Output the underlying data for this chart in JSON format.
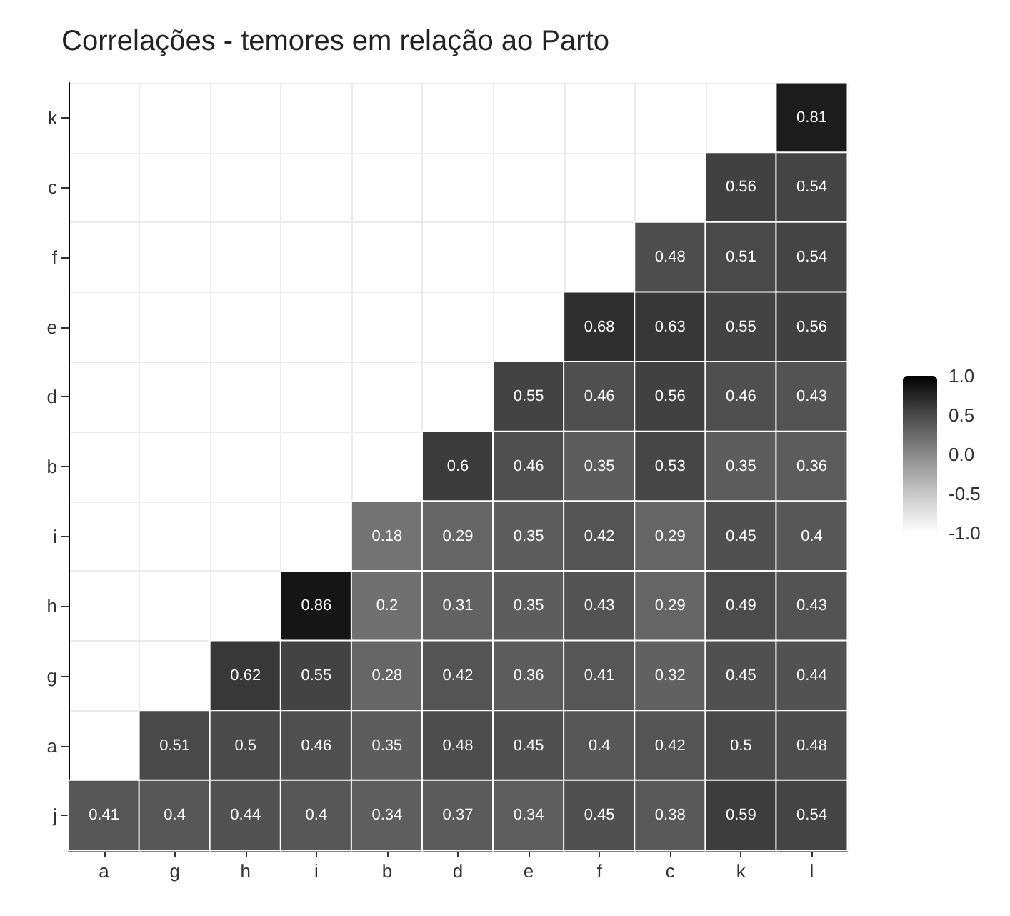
{
  "chart_data": {
    "type": "heatmap",
    "title": "Correlações - temores em relação ao Parto",
    "categories": [
      "a",
      "g",
      "h",
      "i",
      "b",
      "d",
      "e",
      "f",
      "c",
      "k",
      "l"
    ],
    "y_categories": [
      "k",
      "c",
      "f",
      "e",
      "d",
      "b",
      "i",
      "h",
      "g",
      "a",
      "j"
    ],
    "cells": [
      [
        null,
        null,
        null,
        null,
        null,
        null,
        null,
        null,
        null,
        null,
        0.81
      ],
      [
        null,
        null,
        null,
        null,
        null,
        null,
        null,
        null,
        null,
        0.56,
        0.54
      ],
      [
        null,
        null,
        null,
        null,
        null,
        null,
        null,
        null,
        0.48,
        0.51,
        0.54
      ],
      [
        null,
        null,
        null,
        null,
        null,
        null,
        null,
        0.68,
        0.63,
        0.55,
        0.56
      ],
      [
        null,
        null,
        null,
        null,
        null,
        null,
        0.55,
        0.46,
        0.56,
        0.46,
        0.43
      ],
      [
        null,
        null,
        null,
        null,
        null,
        0.6,
        0.46,
        0.35,
        0.53,
        0.35,
        0.36
      ],
      [
        null,
        null,
        null,
        null,
        0.18,
        0.29,
        0.35,
        0.42,
        0.29,
        0.45,
        0.4
      ],
      [
        null,
        null,
        null,
        0.86,
        0.2,
        0.31,
        0.35,
        0.43,
        0.29,
        0.49,
        0.43
      ],
      [
        null,
        null,
        0.62,
        0.55,
        0.28,
        0.42,
        0.36,
        0.41,
        0.32,
        0.45,
        0.44
      ],
      [
        null,
        0.51,
        0.5,
        0.46,
        0.35,
        0.48,
        0.45,
        0.4,
        0.42,
        0.5,
        0.48
      ],
      [
        0.41,
        0.4,
        0.44,
        0.4,
        0.34,
        0.37,
        0.34,
        0.45,
        0.38,
        0.59,
        0.54
      ]
    ],
    "clim": [
      -1,
      1
    ],
    "cticks": [
      {
        "value": 1,
        "label": "1.0"
      },
      {
        "value": 0.5,
        "label": "0.5"
      },
      {
        "value": 0,
        "label": "0.0"
      },
      {
        "value": -0.5,
        "label": "-0.5"
      },
      {
        "value": -1,
        "label": "-1.0"
      }
    ],
    "data_labels": true,
    "grid": true
  }
}
